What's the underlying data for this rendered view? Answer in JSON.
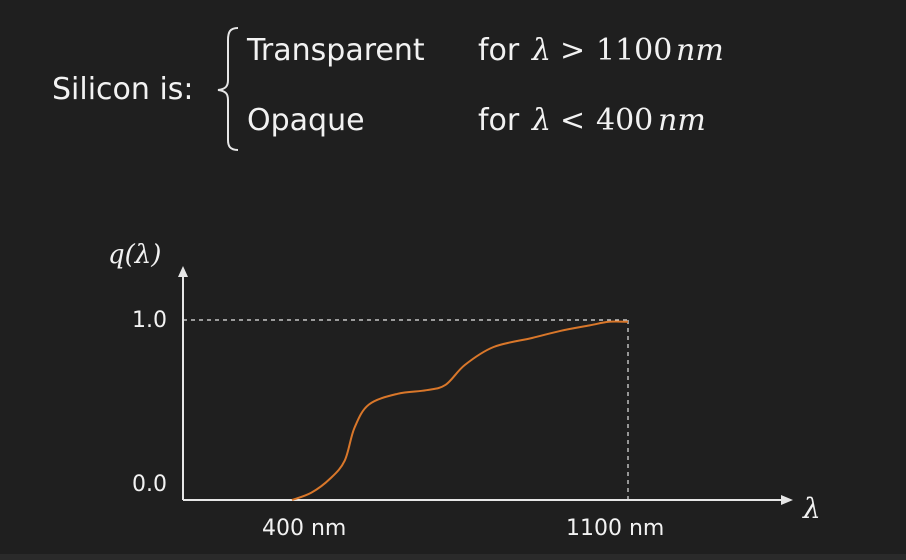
{
  "statement": {
    "lead": "Silicon is:",
    "cases": [
      {
        "label": "Transparent",
        "condition_word": "for",
        "variable": "λ",
        "relation": ">",
        "value": "1100",
        "unit": "nm"
      },
      {
        "label": "Opaque",
        "condition_word": "for",
        "variable": "λ",
        "relation": "<",
        "value": "400",
        "unit": "nm"
      }
    ]
  },
  "colors": {
    "background": "#1f1f1f",
    "text": "#f2f2f2",
    "axis": "#e6e6e6",
    "curve": "#d9772a"
  },
  "chart_data": {
    "type": "line",
    "ylabel": "q(λ)",
    "xlabel": "λ",
    "y_ticks": [
      "1.0",
      "0.0"
    ],
    "x_ticks": [
      "400 nm",
      "1100 nm"
    ],
    "x_range_nm": [
      400,
      1100
    ],
    "ylim": [
      0,
      1.0
    ],
    "reference_lines": "dashed at q = 1.0 and λ = 1100 nm",
    "series": [
      {
        "x": [
          400,
          440,
          480,
          510,
          530,
          560,
          620,
          680,
          720,
          760,
          820,
          900,
          960,
          1020,
          1060,
          1100
        ],
        "y": [
          0.0,
          0.04,
          0.12,
          0.22,
          0.4,
          0.53,
          0.59,
          0.61,
          0.64,
          0.75,
          0.85,
          0.9,
          0.94,
          0.97,
          0.99,
          0.99
        ]
      }
    ]
  }
}
